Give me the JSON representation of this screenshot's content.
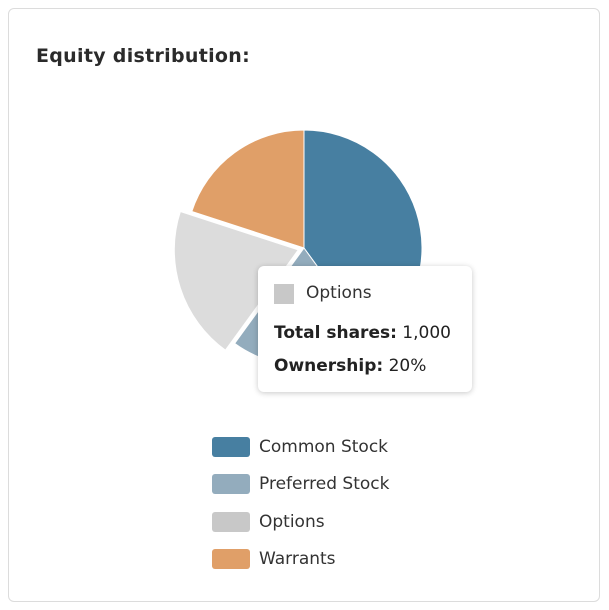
{
  "title": "Equity distribution:",
  "chart_data": {
    "type": "pie",
    "title": "Equity distribution:",
    "categories": [
      "Common Stock",
      "Preferred Stock",
      "Options",
      "Warrants"
    ],
    "values": [
      40,
      20,
      20,
      20
    ],
    "unit": "percent ownership (estimated)",
    "colors": [
      "#477fa1",
      "#93acbd",
      "#dcdcdc",
      "#e09f68"
    ],
    "legend_colors": [
      "#477fa1",
      "#93acbd",
      "#c8c8c8",
      "#e09f68"
    ],
    "highlighted": "Options",
    "legend_position": "bottom"
  },
  "tooltip": {
    "name": "Options",
    "total_shares_label": "Total shares:",
    "total_shares_value": "1,000",
    "ownership_label": "Ownership:",
    "ownership_value": "20%"
  }
}
